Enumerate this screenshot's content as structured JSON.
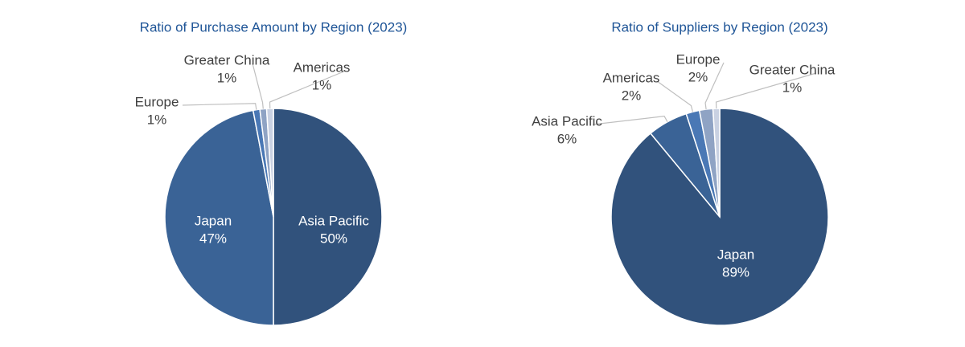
{
  "chart_data": [
    {
      "type": "pie",
      "title": "Ratio of Purchase Amount by Region (2023)",
      "categories": [
        "Asia Pacific",
        "Japan",
        "Europe",
        "Greater China",
        "Americas"
      ],
      "values": [
        50,
        47,
        1,
        1,
        1
      ],
      "value_labels": [
        "50%",
        "47%",
        "1%",
        "1%",
        "1%"
      ],
      "colors": [
        "#31527c",
        "#3a6396",
        "#4a78b5",
        "#8fa3c4",
        "#c9d1e2"
      ]
    },
    {
      "type": "pie",
      "title": "Ratio of Suppliers by Region (2023)",
      "categories": [
        "Japan",
        "Asia Pacific",
        "Americas",
        "Europe",
        "Greater China"
      ],
      "values": [
        89,
        6,
        2,
        2,
        1
      ],
      "value_labels": [
        "89%",
        "6%",
        "2%",
        "2%",
        "1%"
      ],
      "colors": [
        "#31527c",
        "#3a6396",
        "#4a78b5",
        "#8fa3c4",
        "#c9d1e2"
      ]
    }
  ]
}
